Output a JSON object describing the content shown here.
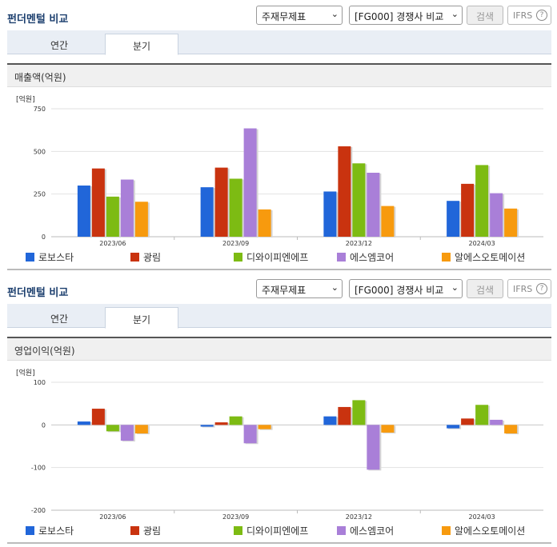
{
  "header": {
    "title": "펀더멘털 비교",
    "select1": "주재무제표",
    "select2": "[FG000] 경쟁사 비교",
    "search_label": "검색",
    "ifrs_label": "IFRS",
    "help_glyph": "?"
  },
  "tabs": [
    "연간",
    "분기"
  ],
  "active_tab": "분기",
  "legend_colors": [
    "#2166d9",
    "#c9330f",
    "#7dbb13",
    "#a97fd8",
    "#f79a0e"
  ],
  "chart_data": [
    {
      "type": "bar",
      "title": "매출액(억원)",
      "unit": "[억원]",
      "categories": [
        "2023/06",
        "2023/09",
        "2023/12",
        "2024/03"
      ],
      "ylim": [
        0,
        750
      ],
      "yticks": [
        0,
        250,
        500,
        750
      ],
      "series": [
        {
          "name": "로보스타",
          "values": [
            300,
            290,
            265,
            210
          ]
        },
        {
          "name": "광림",
          "values": [
            400,
            405,
            530,
            310
          ]
        },
        {
          "name": "디와이피엔에프",
          "values": [
            235,
            340,
            430,
            420
          ]
        },
        {
          "name": "에스엠코어",
          "values": [
            335,
            635,
            375,
            255
          ]
        },
        {
          "name": "알에스오토메이션",
          "values": [
            205,
            160,
            180,
            165
          ]
        }
      ]
    },
    {
      "type": "bar",
      "title": "영업이익(억원)",
      "unit": "[억원]",
      "categories": [
        "2023/06",
        "2023/09",
        "2023/12",
        "2024/03"
      ],
      "ylim": [
        -200,
        100
      ],
      "yticks": [
        -200,
        -100,
        0,
        100
      ],
      "series": [
        {
          "name": "로보스타",
          "values": [
            8,
            -4,
            20,
            -8
          ]
        },
        {
          "name": "광림",
          "values": [
            38,
            6,
            42,
            15
          ]
        },
        {
          "name": "디와이피엔에프",
          "values": [
            -15,
            20,
            58,
            47
          ]
        },
        {
          "name": "에스엠코어",
          "values": [
            -37,
            -43,
            -105,
            12
          ]
        },
        {
          "name": "알에스오토메이션",
          "values": [
            -20,
            -10,
            -18,
            -20
          ]
        }
      ]
    }
  ]
}
